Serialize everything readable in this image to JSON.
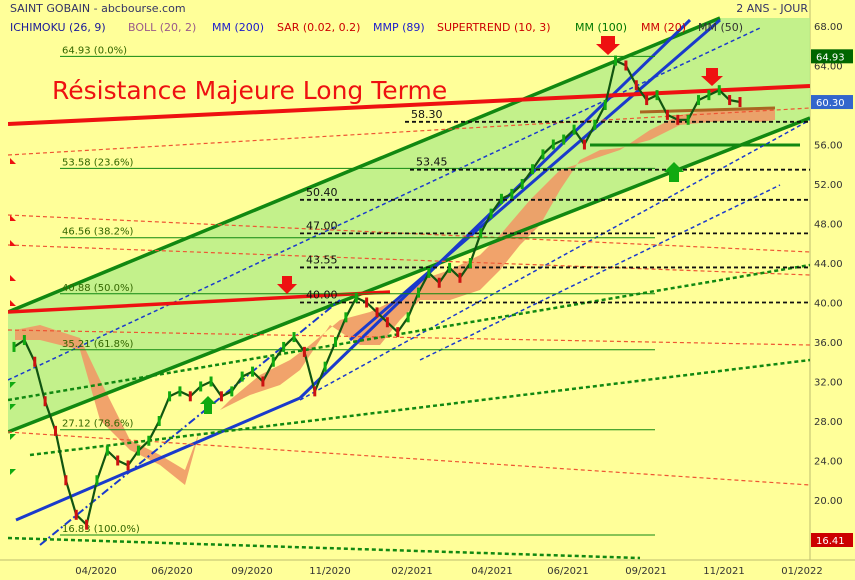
{
  "header": {
    "title": "SAINT GOBAIN - abcbourse.com",
    "period": "2 ANS - JOUR",
    "indicators": [
      {
        "label": "ICHIMOKU (26, 9)",
        "color": "#1a1a99"
      },
      {
        "label": "BOLL (20, 2)",
        "color": "#9a5a8a"
      },
      {
        "label": "MM (200)",
        "color": "#1a1acc"
      },
      {
        "label": "SAR (0.02, 0.2)",
        "color": "#cc0000"
      },
      {
        "label": "MMP (89)",
        "color": "#1a1acc"
      },
      {
        "label": "SUPERTREND (10, 3)",
        "color": "#cc0000"
      },
      {
        "label": "MM (100)",
        "color": "#007700"
      },
      {
        "label": "MM (20)",
        "color": "#cc0000"
      },
      {
        "label": "MM (50)",
        "color": "#333333"
      }
    ]
  },
  "annotation": "Résistance Majeure Long Terme",
  "chart_data": {
    "type": "line",
    "ylim": [
      16.41,
      68.0
    ],
    "y_ticks": [
      "68.00",
      "64.00",
      "60.00",
      "56.00",
      "52.00",
      "48.00",
      "44.00",
      "40.00",
      "36.00",
      "32.00",
      "28.00",
      "24.00",
      "20.00"
    ],
    "x_ticks": [
      "04/2020",
      "06/2020",
      "09/2020",
      "11/2020",
      "02/2021",
      "04/2021",
      "06/2021",
      "09/2021",
      "11/2021",
      "01/2022"
    ],
    "price_badges": [
      {
        "value": "64.93",
        "color": "#006600"
      },
      {
        "value": "60.30",
        "color": "#3366cc"
      },
      {
        "value": "16.41",
        "color": "#cc0000"
      }
    ],
    "fibonacci": [
      {
        "price": 64.93,
        "label": "64.93  (0.0%)"
      },
      {
        "price": 53.58,
        "label": "53.58  (23.6%)"
      },
      {
        "price": 46.56,
        "label": "46.56  (38.2%)"
      },
      {
        "price": 40.88,
        "label": "40.88  (50.0%)"
      },
      {
        "price": 35.21,
        "label": "35.21  (61.8%)"
      },
      {
        "price": 27.12,
        "label": "27.12  (78.6%)"
      },
      {
        "price": 16.83,
        "label": "16.83  (100.0%)"
      }
    ],
    "levels": [
      {
        "price": 58.3,
        "label": "58.30"
      },
      {
        "price": 53.45,
        "label": "53.45"
      },
      {
        "price": 50.4,
        "label": "50.40"
      },
      {
        "price": 47.0,
        "label": "47.00"
      },
      {
        "price": 43.55,
        "label": "43.55"
      },
      {
        "price": 40.0,
        "label": "40.00"
      }
    ],
    "price_series": [
      35.5,
      36.2,
      34.0,
      30.0,
      27.0,
      22.0,
      18.5,
      17.5,
      22.0,
      25.0,
      24.0,
      23.5,
      25.0,
      26.0,
      28.0,
      30.5,
      31.0,
      30.5,
      31.5,
      32.0,
      30.5,
      31.0,
      32.5,
      33.0,
      32.0,
      34.0,
      35.5,
      36.5,
      35.0,
      31.0,
      33.5,
      36.0,
      38.5,
      40.5,
      40.0,
      39.0,
      38.0,
      37.0,
      38.5,
      41.0,
      43.0,
      42.0,
      43.5,
      42.5,
      44.0,
      47.0,
      49.0,
      50.5,
      51.0,
      52.0,
      53.5,
      55.0,
      56.0,
      56.5,
      57.5,
      56.0,
      58.0,
      60.0,
      64.5,
      64.0,
      62.0,
      60.5,
      61.0,
      59.0,
      58.5,
      58.5,
      60.5,
      61.0,
      61.5,
      60.5,
      60.3
    ]
  }
}
